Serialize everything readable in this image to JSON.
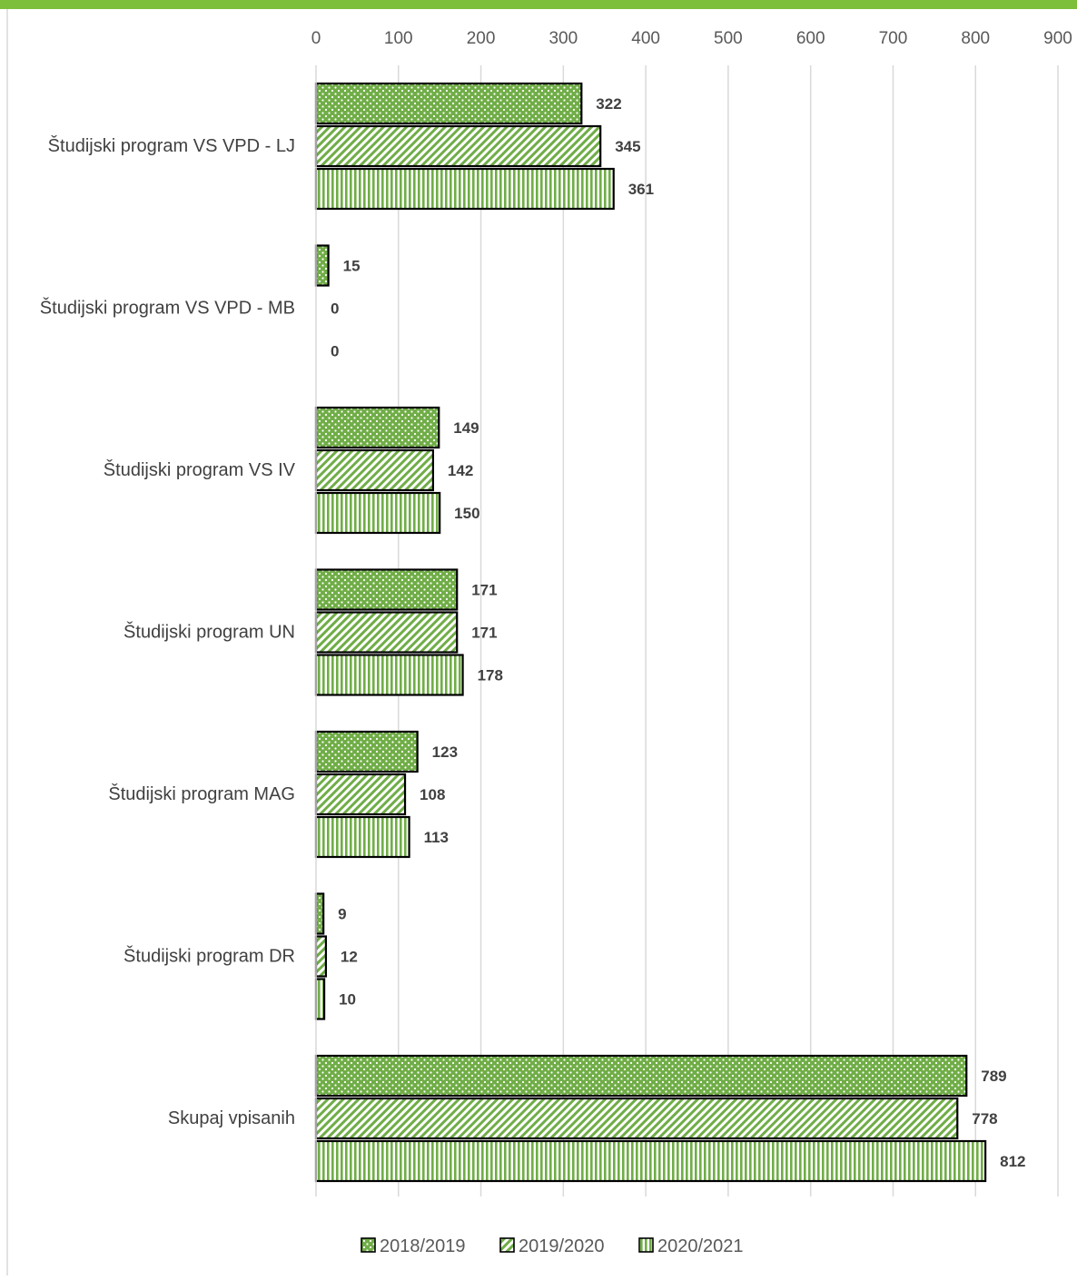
{
  "colors": {
    "accent": "#7dbf3a",
    "bar_fill": "#70ad47",
    "bar_dark": "#3d7a1e",
    "outline": "#000000",
    "grid": "#d9d9d9",
    "text": "#404040"
  },
  "chart_data": {
    "type": "bar",
    "orientation": "horizontal",
    "title": "",
    "xlabel": "",
    "ylabel": "",
    "xlim": [
      0,
      900
    ],
    "x_ticks": [
      0,
      100,
      200,
      300,
      400,
      500,
      600,
      700,
      800,
      900
    ],
    "x_tick_labels": [
      "0",
      "100",
      "200",
      "300",
      "400",
      "500",
      "600",
      "700",
      "800",
      "900"
    ],
    "x_axis_position": "top",
    "grid": true,
    "legend_position": "bottom",
    "categories": [
      "Študijski program VS VPD - LJ",
      "Študijski program VS VPD - MB",
      "Študijski program VS IV",
      "Študijski program UN",
      "Študijski program MAG",
      "Študijski program  DR",
      "Skupaj vpisanih"
    ],
    "series": [
      {
        "name": "2018/2019",
        "pattern": "dots",
        "values": [
          322,
          15,
          149,
          171,
          123,
          9,
          789
        ]
      },
      {
        "name": "2019/2020",
        "pattern": "diagonal-stripes",
        "values": [
          345,
          0,
          142,
          171,
          108,
          12,
          778
        ]
      },
      {
        "name": "2020/2021",
        "pattern": "vertical-stripes",
        "values": [
          361,
          0,
          150,
          178,
          113,
          10,
          812
        ]
      }
    ]
  }
}
